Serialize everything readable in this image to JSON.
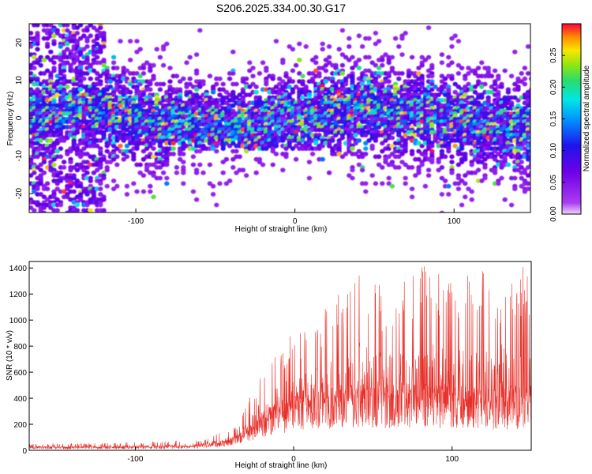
{
  "chart_data": [
    {
      "type": "heatmap",
      "title": "S206.2025.334.00.30.G17",
      "xlabel": "Height of straight line (km)",
      "ylabel": "Frequency (Hz)",
      "xlim": [
        -167,
        148
      ],
      "ylim": [
        -25,
        25
      ],
      "xticks": [
        -100,
        0,
        100
      ],
      "xtick_labels": [
        "-100",
        "0",
        "100"
      ],
      "yticks": [
        -20,
        -10,
        0,
        10,
        20
      ],
      "ytick_labels": [
        "-20",
        "-10",
        "0",
        "10",
        "20"
      ],
      "colorbar": {
        "label": "Normalized spectral amplitude",
        "range": [
          0.0,
          0.3
        ],
        "ticks": [
          0.0,
          0.05,
          0.1,
          0.15,
          0.2,
          0.25
        ],
        "tick_labels": [
          "0.00",
          "0.05",
          "0.10",
          "0.15",
          "0.20",
          "0.25"
        ],
        "colormap": "rainbow"
      },
      "band_center_hz": 0,
      "band_halfwidth_hz": 10
    },
    {
      "type": "line",
      "xlabel": "Height of straight line (km)",
      "ylabel": "SNR (10 * v/v)",
      "xlim": [
        -167,
        150
      ],
      "ylim": [
        0,
        1450
      ],
      "xticks": [
        -100,
        0,
        100
      ],
      "xtick_labels": [
        "-100",
        "0",
        "100"
      ],
      "yticks": [
        0,
        200,
        400,
        600,
        800,
        1000,
        1200,
        1400
      ],
      "ytick_labels": [
        "0",
        "200",
        "400",
        "600",
        "800",
        "1000",
        "1200",
        "1400"
      ],
      "color": "#e8302a",
      "envelope": {
        "x": [
          -167,
          -120,
          -80,
          -60,
          -45,
          -35,
          -25,
          -20,
          -10,
          0,
          20,
          40,
          60,
          80,
          100,
          120,
          150
        ],
        "baseline": [
          20,
          20,
          22,
          30,
          50,
          90,
          150,
          200,
          250,
          300,
          320,
          350,
          340,
          350,
          330,
          320,
          330
        ],
        "peak": [
          50,
          55,
          70,
          90,
          140,
          200,
          500,
          600,
          800,
          900,
          1100,
          1430,
          1250,
          1450,
          1300,
          1400,
          1430
        ]
      }
    }
  ]
}
